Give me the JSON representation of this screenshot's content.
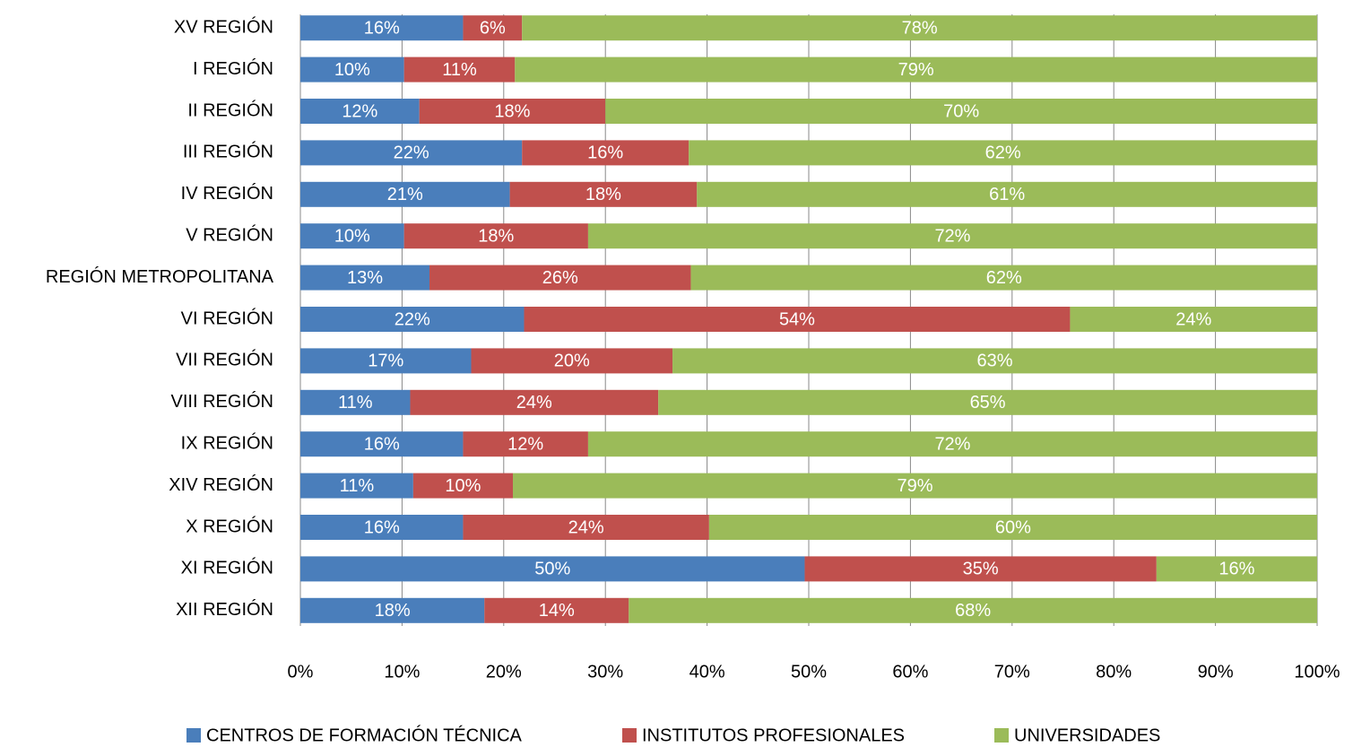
{
  "chart_data": {
    "type": "stacked-bar-horizontal",
    "categories": [
      "XV REGIÓN",
      "I REGIÓN",
      "II REGIÓN",
      "III REGIÓN",
      "IV REGIÓN",
      "V REGIÓN",
      "REGIÓN METROPOLITANA",
      "VI REGIÓN",
      "VII REGIÓN",
      "VIII REGIÓN",
      "IX REGIÓN",
      "XIV REGIÓN",
      "X REGIÓN",
      "XI REGIÓN",
      "XII REGIÓN"
    ],
    "series": [
      {
        "name": "CENTROS DE FORMACIÓN TÉCNICA",
        "color": "#4a7ebb",
        "values": [
          16.0,
          10.2,
          11.7,
          21.8,
          20.6,
          10.2,
          12.7,
          22.0,
          16.8,
          10.8,
          16.0,
          11.1,
          16.0,
          49.6,
          18.1
        ],
        "value_labels": [
          "16%",
          "10%",
          "12%",
          "22%",
          "21%",
          "10%",
          "13%",
          "22%",
          "17%",
          "11%",
          "16%",
          "11%",
          "16%",
          "50%",
          "18%"
        ]
      },
      {
        "name": "INSTITUTOS PROFESIONALES",
        "color": "#c0504d",
        "values": [
          5.8,
          10.9,
          18.3,
          16.4,
          18.4,
          18.1,
          25.7,
          53.7,
          19.8,
          24.4,
          12.3,
          9.8,
          24.2,
          34.6,
          14.2
        ],
        "value_labels": [
          "6%",
          "11%",
          "18%",
          "16%",
          "18%",
          "18%",
          "26%",
          "54%",
          "20%",
          "24%",
          "12%",
          "10%",
          "24%",
          "35%",
          "14%"
        ]
      },
      {
        "name": "UNIVERSIDADES",
        "color": "#9bbb59",
        "values": [
          78.2,
          78.9,
          70.0,
          61.8,
          61.0,
          71.7,
          61.6,
          24.3,
          63.4,
          64.8,
          71.7,
          79.1,
          59.8,
          15.8,
          67.7
        ],
        "value_labels": [
          "78%",
          "79%",
          "70%",
          "62%",
          "61%",
          "72%",
          "62%",
          "24%",
          "63%",
          "65%",
          "72%",
          "79%",
          "60%",
          "16%",
          "68%"
        ]
      }
    ],
    "xlim": [
      0,
      100
    ],
    "xticks": [
      {
        "value": 0,
        "label": "0%"
      },
      {
        "value": 10,
        "label": "10%"
      },
      {
        "value": 20,
        "label": "20%"
      },
      {
        "value": 30,
        "label": "30%"
      },
      {
        "value": 40,
        "label": "40%"
      },
      {
        "value": 50,
        "label": "50%"
      },
      {
        "value": 60,
        "label": "60%"
      },
      {
        "value": 70,
        "label": "70%"
      },
      {
        "value": 80,
        "label": "80%"
      },
      {
        "value": 90,
        "label": "90%"
      },
      {
        "value": 100,
        "label": "100%"
      }
    ],
    "grid": true,
    "legend": "bottom"
  }
}
